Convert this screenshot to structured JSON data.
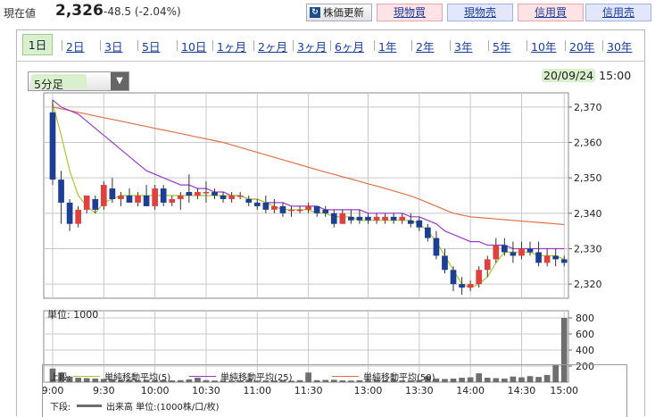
{
  "header": {
    "price_label": "現在値",
    "price_value": "2,326",
    "price_change": "-48.5 (-2.04%)",
    "refresh_label": "株価更新",
    "buttons": {
      "genbutsu_buy": "現物買",
      "genbutsu_sell": "現物売",
      "shinyo_buy": "信用買",
      "shinyo_sell": "信用売"
    }
  },
  "tabs": [
    "1日",
    "2日",
    "3日",
    "5日",
    "10日",
    "1ヶ月",
    "2ヶ月",
    "3ヶ月",
    "6ヶ月",
    "1年",
    "2年",
    "3年",
    "5年",
    "10年",
    "20年",
    "30年"
  ],
  "active_tab": "1日",
  "interval_select": {
    "selected": "5分足"
  },
  "datetime": {
    "date": "20/09/24",
    "time": "15:00"
  },
  "legend": {
    "upper_label": "上段:",
    "lower_label": "下段:",
    "ma5": "単純移動平均(5)",
    "ma25": "単純移動平均(25)",
    "ma50": "単純移動平均(50)",
    "volume": "出来高 単位:(1000株/口/枚)"
  },
  "colors": {
    "ma5": "#a8c832",
    "ma25": "#9b3cc8",
    "ma50": "#e0704a",
    "up": "#e04040",
    "down": "#1c3f94",
    "volume": "#6e6e6e",
    "tab_active": "#d8f0cc"
  },
  "chart_data": [
    {
      "type": "candlestick",
      "title": "",
      "ylim": [
        2316,
        2374
      ],
      "yticks": [
        "2,370",
        "2,360",
        "2,350",
        "2,340",
        "2,330",
        "2,320"
      ],
      "ytick_values": [
        2370,
        2360,
        2350,
        2340,
        2330,
        2320
      ],
      "xticks": [
        "9:00",
        "9:30",
        "10:00",
        "10:30",
        "11:00",
        "11:30",
        "13:00",
        "13:30",
        "14:00",
        "14:30",
        "15:00"
      ],
      "grid": true,
      "x": [
        "9:00",
        "9:05",
        "9:10",
        "9:15",
        "9:20",
        "9:25",
        "9:30",
        "9:35",
        "9:40",
        "9:45",
        "9:50",
        "9:55",
        "10:00",
        "10:05",
        "10:10",
        "10:15",
        "10:20",
        "10:25",
        "10:30",
        "10:35",
        "10:40",
        "10:45",
        "10:50",
        "10:55",
        "11:00",
        "11:05",
        "11:10",
        "11:15",
        "11:20",
        "11:25",
        "11:30",
        "12:30",
        "12:35",
        "12:40",
        "12:45",
        "12:50",
        "12:55",
        "13:00",
        "13:05",
        "13:10",
        "13:15",
        "13:20",
        "13:25",
        "13:30",
        "13:35",
        "13:40",
        "13:45",
        "13:50",
        "13:55",
        "14:00",
        "14:05",
        "14:10",
        "14:15",
        "14:20",
        "14:25",
        "14:30",
        "14:35",
        "14:40",
        "14:45",
        "14:50",
        "14:55"
      ],
      "ohlc": [
        [
          2368.5,
          2372,
          2348,
          2349.5
        ],
        [
          2349.5,
          2352,
          2337,
          2343
        ],
        [
          2343,
          2344,
          2335,
          2337
        ],
        [
          2337,
          2342,
          2336,
          2341
        ],
        [
          2341,
          2345,
          2340,
          2345
        ],
        [
          2344,
          2345,
          2340,
          2341
        ],
        [
          2342,
          2349,
          2341,
          2348
        ],
        [
          2347,
          2350,
          2343,
          2344
        ],
        [
          2344,
          2346,
          2342,
          2345
        ],
        [
          2345,
          2347,
          2343,
          2343
        ],
        [
          2343,
          2346,
          2342,
          2345
        ],
        [
          2345,
          2348,
          2342,
          2342
        ],
        [
          2342,
          2348,
          2341,
          2347
        ],
        [
          2347,
          2348,
          2342,
          2343
        ],
        [
          2343,
          2345,
          2342,
          2344
        ],
        [
          2344,
          2346,
          2341,
          2345
        ],
        [
          2346,
          2351,
          2343,
          2345
        ],
        [
          2345,
          2347,
          2344,
          2346
        ],
        [
          2346,
          2349,
          2343,
          2346
        ],
        [
          2346,
          2347,
          2344,
          2345
        ],
        [
          2345,
          2346,
          2343,
          2344
        ],
        [
          2344,
          2346,
          2343,
          2345
        ],
        [
          2345,
          2346,
          2344,
          2345
        ],
        [
          2344,
          2345,
          2342,
          2343
        ],
        [
          2343,
          2344,
          2341,
          2342
        ],
        [
          2343,
          2345,
          2340,
          2341
        ],
        [
          2341,
          2344,
          2340,
          2342
        ],
        [
          2342,
          2343,
          2339,
          2340
        ],
        [
          2341,
          2342,
          2339,
          2341
        ],
        [
          2341,
          2342,
          2340,
          2341
        ],
        [
          2341,
          2343,
          2340,
          2342
        ],
        [
          2342,
          2342,
          2339,
          2340
        ],
        [
          2341,
          2342,
          2339,
          2340
        ],
        [
          2340,
          2341,
          2336,
          2337
        ],
        [
          2337,
          2341,
          2337,
          2340
        ],
        [
          2339,
          2341,
          2337,
          2338
        ],
        [
          2339,
          2341,
          2337,
          2338
        ],
        [
          2339,
          2340,
          2337,
          2338
        ],
        [
          2338,
          2340,
          2337,
          2339
        ],
        [
          2338,
          2340,
          2337,
          2339
        ],
        [
          2339,
          2340,
          2337,
          2338
        ],
        [
          2338,
          2340,
          2337,
          2339
        ],
        [
          2338,
          2340,
          2336,
          2337
        ],
        [
          2338,
          2339,
          2335,
          2336
        ],
        [
          2336,
          2337,
          2332,
          2333
        ],
        [
          2333,
          2335,
          2327,
          2328
        ],
        [
          2328,
          2330,
          2323,
          2324
        ],
        [
          2324,
          2325,
          2318,
          2320
        ],
        [
          2320,
          2322,
          2317,
          2319
        ],
        [
          2319,
          2321,
          2318,
          2320
        ],
        [
          2320,
          2325,
          2319,
          2324
        ],
        [
          2324,
          2328,
          2322,
          2327
        ],
        [
          2327,
          2333,
          2326,
          2331
        ],
        [
          2331,
          2333,
          2328,
          2329
        ],
        [
          2329,
          2332,
          2326,
          2328
        ],
        [
          2328,
          2332,
          2327,
          2330
        ],
        [
          2330,
          2332,
          2328,
          2329
        ],
        [
          2329,
          2332,
          2325,
          2326
        ],
        [
          2326,
          2330,
          2325,
          2328
        ],
        [
          2328,
          2330,
          2325,
          2327
        ],
        [
          2327,
          2328,
          2325,
          2326
        ]
      ],
      "series": [
        {
          "name": "単純移動平均(5)",
          "values": [
            2371,
            2362,
            2352,
            2345,
            2342,
            2340,
            2343,
            2344,
            2345,
            2345,
            2345,
            2345,
            2345,
            2345,
            2345,
            2345,
            2345,
            2345,
            2345,
            2345,
            2345,
            2345,
            2345,
            2344,
            2344,
            2343,
            2342,
            2341,
            2341,
            2341,
            2341,
            2340,
            2340,
            2339,
            2339,
            2339,
            2338,
            2338,
            2338,
            2338,
            2338,
            2338,
            2338,
            2337,
            2335,
            2332,
            2328,
            2324,
            2320,
            2319,
            2320,
            2322,
            2326,
            2329,
            2329,
            2329,
            2329,
            2328,
            2328,
            2328,
            2327
          ]
        },
        {
          "name": "単純移動平均(25)",
          "values": [
            2372,
            2370,
            2369,
            2368,
            2366,
            2364,
            2362,
            2360,
            2358,
            2356,
            2354,
            2352,
            2351,
            2350,
            2349,
            2348,
            2348,
            2347,
            2347,
            2346,
            2346,
            2345,
            2345,
            2344,
            2344,
            2343,
            2343,
            2343,
            2342,
            2342,
            2342,
            2342,
            2341,
            2341,
            2341,
            2341,
            2341,
            2340,
            2340,
            2340,
            2340,
            2340,
            2339,
            2339,
            2338,
            2337,
            2335,
            2334,
            2333,
            2332,
            2332,
            2331,
            2331,
            2331,
            2330,
            2330,
            2330,
            2330,
            2330,
            2330,
            2330
          ]
        },
        {
          "name": "単純移動平均(50)",
          "values": [
            2370,
            2369.5,
            2369,
            2368.5,
            2368,
            2367.5,
            2367,
            2366.5,
            2366,
            2365.5,
            2365,
            2364.5,
            2364,
            2363.5,
            2363,
            2362.5,
            2362,
            2361.5,
            2361,
            2360.5,
            2360,
            2359.3,
            2358.6,
            2357.9,
            2357.2,
            2356.5,
            2355.8,
            2355.1,
            2354.4,
            2353.7,
            2353,
            2352.3,
            2351.6,
            2351,
            2350.3,
            2349.7,
            2349,
            2348.3,
            2347.7,
            2347,
            2346.3,
            2345.6,
            2344.9,
            2344,
            2343,
            2342,
            2341,
            2340,
            2339.5,
            2339,
            2338.8,
            2338.6,
            2338.4,
            2338.2,
            2338,
            2337.8,
            2337.6,
            2337.4,
            2337.2,
            2337,
            2336.8
          ]
        }
      ]
    },
    {
      "type": "bar",
      "title": "単位: 1000",
      "ylim": [
        0,
        800
      ],
      "yticks": [
        "800",
        "600",
        "400",
        "200"
      ],
      "ytick_values": [
        800,
        600,
        400,
        200
      ],
      "grid": true,
      "values": [
        170,
        120,
        70,
        55,
        50,
        45,
        40,
        35,
        30,
        30,
        25,
        30,
        28,
        25,
        22,
        25,
        35,
        55,
        25,
        20,
        25,
        20,
        22,
        30,
        20,
        22,
        20,
        25,
        18,
        25,
        120,
        25,
        28,
        30,
        22,
        20,
        25,
        30,
        35,
        25,
        30,
        22,
        25,
        25,
        75,
        45,
        40,
        45,
        55,
        60,
        110,
        55,
        50,
        45,
        70,
        60,
        75,
        65,
        90,
        210,
        800
      ],
      "series": [
        {
          "name": "出来高 単位:(1000株/口/枚)",
          "values": []
        }
      ]
    }
  ]
}
